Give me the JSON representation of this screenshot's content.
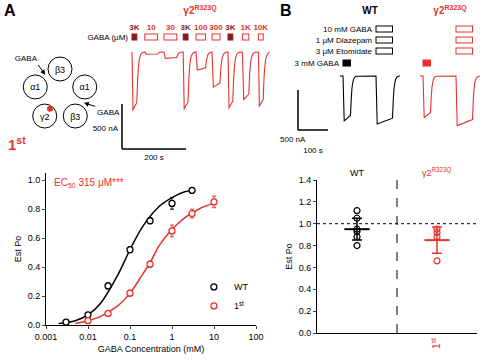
{
  "figure": {
    "panel_a": {
      "label": "A",
      "diagram": {
        "subunits": [
          "β3",
          "α1",
          "β3",
          "γ2",
          "α1"
        ],
        "mutant_index": 3,
        "mutant_color": "#e8322d",
        "agonist": [
          "GABA",
          "GABA"
        ],
        "construct": {
          "text": "1",
          "sup": "st"
        },
        "construct_color": "#e8322d"
      },
      "traces": {
        "title": {
          "text": "γ2",
          "sup": "R323Q"
        },
        "color": "#e8322d",
        "bar_color": "#8b1a1a",
        "unit_label": "GABA (μM)",
        "total_time": 430,
        "applications": [
          {
            "label": "3K",
            "start": 0,
            "duration": 15,
            "peak": -640,
            "marker": "filled"
          },
          {
            "label": "10",
            "start": 40,
            "duration": 40,
            "peak": -25,
            "marker": "open"
          },
          {
            "label": "30",
            "start": 100,
            "duration": 40,
            "peak": -70,
            "marker": "open"
          },
          {
            "label": "3K",
            "start": 160,
            "duration": 15,
            "peak": -630,
            "marker": "filled"
          },
          {
            "label": "100",
            "start": 200,
            "duration": 30,
            "peak": -200,
            "marker": "open"
          },
          {
            "label": "300",
            "start": 250,
            "duration": 25,
            "peak": -390,
            "marker": "open"
          },
          {
            "label": "3K",
            "start": 300,
            "duration": 15,
            "peak": -620,
            "marker": "filled"
          },
          {
            "label": "1K",
            "start": 345,
            "duration": 20,
            "peak": -530,
            "marker": "open"
          },
          {
            "label": "10K",
            "start": 395,
            "duration": 15,
            "peak": -600,
            "marker": "open"
          }
        ],
        "scale_current": {
          "value": 500,
          "label": "500 nA"
        },
        "scale_time": {
          "value": 200,
          "label": "200 s"
        }
      }
    },
    "panel_b": {
      "label": "B",
      "conditions": [
        "10 mM GABA",
        "1 μM Diazepam",
        "3 μM Etomidate"
      ],
      "control": "3 mM GABA",
      "total_time": 200,
      "traces": [
        {
          "name": {
            "text": "WT"
          },
          "color": "#000000",
          "control": {
            "start": 10,
            "duration": 25,
            "peak": -560
          },
          "cocktail": {
            "start": 120,
            "duration": 55,
            "peak": -600
          }
        },
        {
          "name": {
            "text": "γ2",
            "sup": "R323Q"
          },
          "color": "#e8322d",
          "control": {
            "start": 10,
            "duration": 25,
            "peak": -520
          },
          "cocktail": {
            "start": 120,
            "duration": 55,
            "peak": -620
          }
        }
      ],
      "scale_current": {
        "value": 500,
        "label": "500 nA"
      },
      "scale_time": {
        "value": 100,
        "label": "100 s"
      }
    }
  },
  "chart_data": [
    {
      "type": "scatter",
      "x_label": "GABA Concentration (mM)",
      "y_label": "Est Po",
      "log": "x",
      "grid": false,
      "xlim": [
        0.001,
        100
      ],
      "xticks": [
        0.001,
        0.01,
        0.1,
        1,
        10,
        100
      ],
      "ylim": [
        0,
        1.05
      ],
      "yticks": [
        {
          "value": 0,
          "label": "0.0"
        },
        {
          "value": 0.2,
          "label": "0.2"
        },
        {
          "value": 0.4,
          "label": "0.4"
        },
        {
          "value": 0.6,
          "label": "0.6"
        },
        {
          "value": 0.8,
          "label": "0.8"
        },
        {
          "value": 1,
          "label": "1.0"
        }
      ],
      "legend": "lower right",
      "annotation": {
        "text": "EC",
        "sub": "50",
        "after": " 315 μM***",
        "color": "#e8322d"
      },
      "series": [
        {
          "name": {
            "text": "WT"
          },
          "color": "#000000",
          "marker": "circle-open",
          "x": [
            0.003,
            0.01,
            0.03,
            0.1,
            0.3,
            1,
            3
          ],
          "values": [
            0.02,
            0.07,
            0.27,
            0.52,
            0.72,
            0.84,
            0.93
          ],
          "errors": [
            0.01,
            0.01,
            0.02,
            0.02,
            0.02,
            0.04,
            0.02
          ],
          "fit_x": [
            0.002,
            0.005,
            0.01,
            0.02,
            0.05,
            0.1,
            0.2,
            0.5,
            1,
            2,
            3
          ],
          "fit": [
            0.01,
            0.03,
            0.07,
            0.15,
            0.34,
            0.52,
            0.68,
            0.82,
            0.88,
            0.92,
            0.93
          ]
        },
        {
          "name": {
            "text": "1",
            "sup": "st"
          },
          "color": "#e8322d",
          "marker": "circle-open",
          "x": [
            0.01,
            0.03,
            0.1,
            0.3,
            1,
            3,
            10
          ],
          "values": [
            0.03,
            0.08,
            0.22,
            0.42,
            0.65,
            0.77,
            0.85
          ],
          "errors": [
            0.01,
            0.01,
            0.02,
            0.02,
            0.04,
            0.03,
            0.04
          ],
          "fit_x": [
            0.005,
            0.01,
            0.02,
            0.05,
            0.1,
            0.2,
            0.3,
            0.5,
            1,
            2,
            5,
            10
          ],
          "fit": [
            0.01,
            0.03,
            0.06,
            0.13,
            0.22,
            0.35,
            0.43,
            0.55,
            0.66,
            0.74,
            0.81,
            0.84
          ]
        }
      ]
    },
    {
      "type": "scatter",
      "y_label": "Est Po",
      "categories": [
        null,
        {
          "text": "1",
          "sup": "st"
        }
      ],
      "group_labels": [
        {
          "text": "WT"
        },
        {
          "text": "γ2",
          "sup": "R323Q"
        }
      ],
      "colors": [
        "#000000",
        "#e8322d"
      ],
      "marker": "circle-open",
      "points": [
        [
          1.12,
          1.05,
          0.95,
          0.93,
          0.88,
          0.8
        ],
        [
          0.95,
          0.92,
          0.88,
          0.66
        ]
      ],
      "means": [
        0.95,
        0.85
      ],
      "errors": [
        0.1,
        0.12
      ],
      "reference": 1.0,
      "ylim": [
        0,
        1.4
      ],
      "yticks": [
        {
          "value": 0,
          "label": "0.0"
        },
        {
          "value": 0.2,
          "label": "0.2"
        },
        {
          "value": 0.4,
          "label": "0.4"
        },
        {
          "value": 0.6,
          "label": "0.6"
        },
        {
          "value": 0.8,
          "label": "0.8"
        },
        {
          "value": 1,
          "label": "1.0"
        },
        {
          "value": 1.2,
          "label": "1.2"
        },
        {
          "value": 1.4,
          "label": "1.4"
        }
      ]
    }
  ]
}
